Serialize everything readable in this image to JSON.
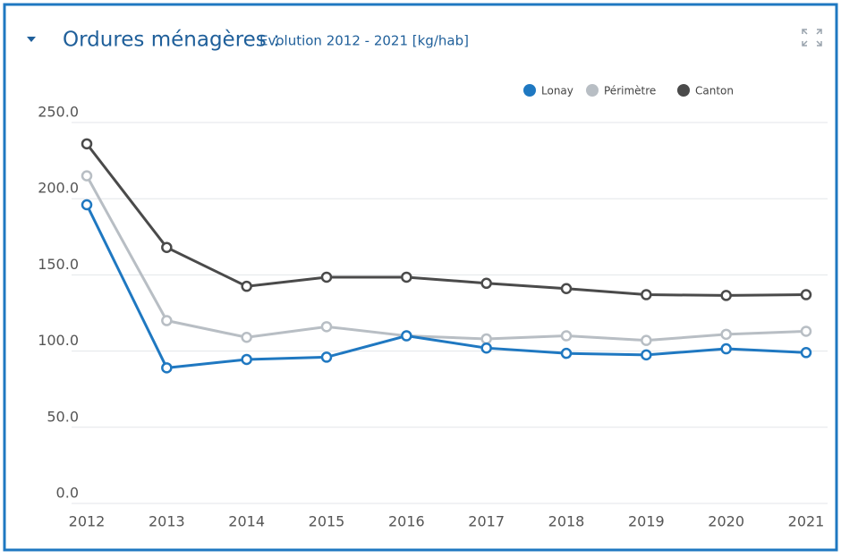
{
  "chart_data": {
    "type": "line",
    "title": "Ordures ménagères :",
    "subtitle": "Evolution 2012 - 2021 [kg/hab]",
    "x": [
      2012,
      2013,
      2014,
      2015,
      2016,
      2017,
      2018,
      2019,
      2020,
      2021
    ],
    "xlim": [
      2012,
      2021
    ],
    "xticks": [
      2012,
      2013,
      2014,
      2015,
      2016,
      2017,
      2018,
      2019,
      2020,
      2021
    ],
    "ylim": [
      0,
      250
    ],
    "yticks": [
      {
        "value": 0,
        "label": "0.0"
      },
      {
        "value": 50,
        "label": "50.0"
      },
      {
        "value": 100,
        "label": "100.0"
      },
      {
        "value": 150,
        "label": "150.0"
      },
      {
        "value": 200,
        "label": "200.0"
      },
      {
        "value": 250,
        "label": "250.0"
      }
    ],
    "grid": true,
    "legend": "top-right",
    "series": [
      {
        "name": "Lonay",
        "color": "#1f78c1",
        "values": [
          196,
          89,
          94.5,
          96,
          110,
          102,
          98.5,
          97.5,
          101.5,
          99
        ]
      },
      {
        "name": "Périmètre",
        "color": "#b8bec4",
        "values": [
          215,
          120,
          109,
          116,
          110,
          108,
          110,
          107,
          111,
          113
        ]
      },
      {
        "name": "Canton",
        "color": "#4a4a4a",
        "values": [
          236,
          168,
          142.5,
          148.5,
          148.5,
          144.5,
          141,
          137,
          136.5,
          137
        ]
      }
    ]
  }
}
